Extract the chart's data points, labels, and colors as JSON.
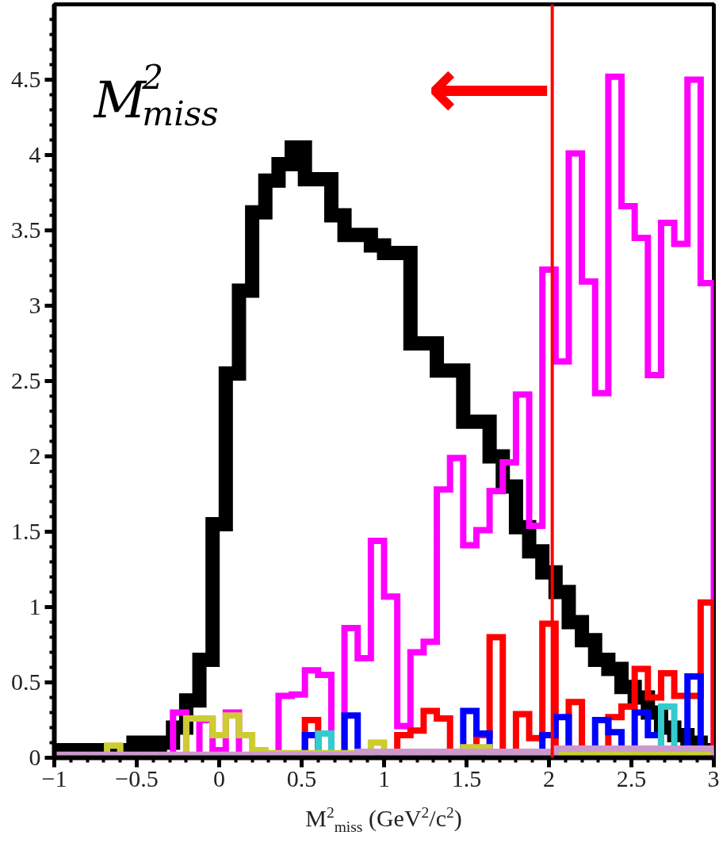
{
  "chart_data": {
    "type": "histogram",
    "xlabel": "M$^{2}$$_{miss}$ (GeV$^{2}$/c$^{2}$)",
    "annotations": [
      "M$^{2}$$_{miss}$"
    ],
    "bins": [
      -1,
      -0.92,
      -0.84,
      -0.76,
      -0.68,
      -0.6,
      -0.52,
      -0.44,
      -0.36,
      -0.28,
      -0.2,
      -0.12,
      -0.04,
      0.04,
      0.12,
      0.2,
      0.28,
      0.36,
      0.44,
      0.52,
      0.6,
      0.68,
      0.76,
      0.84,
      0.92,
      1,
      1.08,
      1.16,
      1.24,
      1.32,
      1.4,
      1.48,
      1.56,
      1.64,
      1.72,
      1.8,
      1.88,
      1.96,
      2.04,
      2.12,
      2.2,
      2.28,
      2.36,
      2.44,
      2.52,
      2.6,
      2.68,
      2.76,
      2.84,
      2.92,
      3
    ],
    "series": [
      {
        "color": "#000000",
        "values": [
          0.05,
          0.05,
          0.05,
          0.05,
          0.05,
          0.05,
          0.1,
          0.07,
          0.1,
          0.2,
          0.38,
          0.65,
          1.55,
          2.55,
          3.1,
          3.62,
          3.83,
          3.94,
          4.05,
          3.84,
          3.84,
          3.6,
          3.47,
          3.47,
          3.4,
          3.35,
          3.35,
          2.75,
          2.75,
          2.57,
          2.57,
          2.23,
          2.23,
          2.0,
          1.8,
          1.53,
          1.37,
          1.23,
          1.1,
          0.9,
          0.78,
          0.65,
          0.59,
          0.47,
          0.4,
          0.3,
          0.2,
          0.15,
          0.1,
          0.05
        ]
      },
      {
        "color": "#ff00ff",
        "values": [
          0,
          0,
          0,
          0,
          0,
          0,
          0,
          0,
          0,
          0.3,
          0,
          0.25,
          0.05,
          0.3,
          0,
          0,
          0,
          0.41,
          0.42,
          0.58,
          0.55,
          0,
          0.86,
          0.66,
          1.44,
          1.07,
          0.21,
          0.7,
          0.77,
          1.78,
          1.99,
          1.41,
          1.51,
          1.77,
          1.96,
          2.41,
          1.54,
          3.24,
          2.63,
          4.01,
          3.16,
          2.42,
          4.52,
          3.66,
          3.45,
          2.54,
          3.55,
          3.41,
          4.5,
          3.15
        ]
      },
      {
        "color": "#ff0000",
        "values": [
          0,
          0,
          0,
          0,
          0,
          0,
          0,
          0,
          0,
          0,
          0,
          0,
          0,
          0,
          0,
          0,
          0,
          0,
          0,
          0.25,
          0,
          0,
          0,
          0,
          0,
          0,
          0.15,
          0.18,
          0.31,
          0.26,
          0,
          0,
          0.15,
          0.8,
          0,
          0.29,
          0.13,
          0.89,
          0.05,
          0.37,
          0.05,
          0.05,
          0.27,
          0.34,
          0.59,
          0.4,
          0.56,
          0.41,
          0.41,
          1.03
        ]
      },
      {
        "color": "#0000ff",
        "values": [
          0,
          0,
          0,
          0,
          0,
          0,
          0,
          0,
          0,
          0,
          0,
          0,
          0,
          0,
          0,
          0,
          0,
          0,
          0,
          0.15,
          0,
          0,
          0.28,
          0,
          0,
          0,
          0,
          0,
          0,
          0,
          0,
          0.31,
          0.16,
          0,
          0,
          0,
          0,
          0.15,
          0.27,
          0,
          0,
          0.25,
          0.17,
          0,
          0.3,
          0.15,
          0,
          0,
          0.54,
          0
        ]
      },
      {
        "color": "#33cccc",
        "values": [
          0,
          0,
          0,
          0,
          0,
          0,
          0,
          0,
          0,
          0,
          0,
          0,
          0,
          0,
          0,
          0,
          0,
          0,
          0,
          0,
          0.16,
          0,
          0,
          0,
          0,
          0,
          0,
          0,
          0,
          0,
          0,
          0,
          0,
          0,
          0,
          0,
          0,
          0,
          0,
          0,
          0,
          0,
          0,
          0,
          0,
          0,
          0.34,
          0,
          0,
          0
        ]
      },
      {
        "color": "#cccc33",
        "values": [
          0,
          0,
          0,
          0,
          0.08,
          0,
          0,
          0,
          0,
          0,
          0.26,
          0.26,
          0.15,
          0.28,
          0.15,
          0.05,
          0.03,
          0.03,
          0.03,
          0.03,
          0.03,
          0.03,
          0.03,
          0.03,
          0.1,
          0.03,
          0.03,
          0.03,
          0.03,
          0.03,
          0.03,
          0.07,
          0.07,
          0.03,
          0.03,
          0.03,
          0.03,
          0.03,
          0.03,
          0.03,
          0.03,
          0.03,
          0.03,
          0.03,
          0.03,
          0.03,
          0.03,
          0.03,
          0.03,
          0.03
        ]
      },
      {
        "color": "#cc99cc",
        "values": [
          0.02,
          0.02,
          0.02,
          0.02,
          0.02,
          0.02,
          0.02,
          0.02,
          0.02,
          0.02,
          0.02,
          0.02,
          0.02,
          0.02,
          0.02,
          0.02,
          0.02,
          0.02,
          0.02,
          0.02,
          0.02,
          0.02,
          0.02,
          0.04,
          0.04,
          0.04,
          0.04,
          0.04,
          0.04,
          0.04,
          0.04,
          0.04,
          0.04,
          0.04,
          0.04,
          0.04,
          0.04,
          0.04,
          0.06,
          0.06,
          0.06,
          0.06,
          0.06,
          0.06,
          0.06,
          0.06,
          0.06,
          0.06,
          0.06,
          0.06
        ]
      }
    ],
    "xlim": [
      -1,
      3
    ],
    "ylim": [
      0,
      5
    ],
    "xticks": [
      {
        "value": -1,
        "label": "−1"
      },
      {
        "value": -0.5,
        "label": "−0.5"
      },
      0,
      0.5,
      1,
      1.5,
      2,
      2.5,
      3
    ],
    "yticks": [
      0,
      0.5,
      1,
      1.5,
      2,
      2.5,
      3,
      3.5,
      4,
      4.5
    ],
    "ref_lines": [
      {
        "axis": "x",
        "value": 2.02,
        "color": "#ff0000",
        "label": "⟵"
      }
    ],
    "grid": false
  }
}
